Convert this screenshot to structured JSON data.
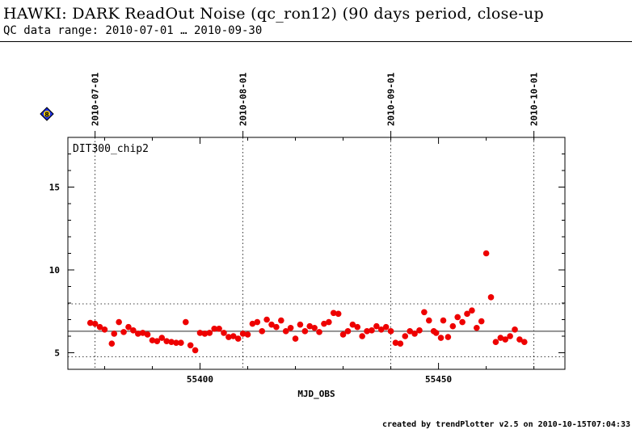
{
  "header": {
    "title": "HAWKI: DARK ReadOut Noise (qc_ron12) (90 days period, close-up",
    "subtitle": "QC data range: 2010-07-01 … 2010-09-30"
  },
  "footer": {
    "credit": "created by trendPlotter v2.5 on 2010-10-15T07:04:33"
  },
  "badge": {
    "label": "8",
    "color": "#1a2ee6"
  },
  "chart_data": {
    "type": "scatter",
    "panel_label": "DIT300_chip2",
    "xlabel": "MJD_OBS",
    "ylabel": "",
    "xlim": [
      55372.3,
      55476.5
    ],
    "ylim": [
      4.0,
      18.0
    ],
    "x_ticks": [
      55400,
      55450
    ],
    "x_tick_labels": [
      "55400",
      "55450"
    ],
    "y_ticks": [
      5,
      10,
      15
    ],
    "y_tick_labels": [
      "5",
      "10",
      "15"
    ],
    "date_markers": [
      {
        "x": 55378,
        "label": "2010-07-01"
      },
      {
        "x": 55409,
        "label": "2010-08-01"
      },
      {
        "x": 55440,
        "label": "2010-09-01"
      },
      {
        "x": 55470,
        "label": "2010-10-01"
      }
    ],
    "mean_line": 6.3,
    "threshold_lines": [
      4.75,
      7.95
    ],
    "point_color": "#ee0000",
    "points": [
      {
        "x": 55377,
        "y": 6.8
      },
      {
        "x": 55378,
        "y": 6.75
      },
      {
        "x": 55379,
        "y": 6.55
      },
      {
        "x": 55380,
        "y": 6.4
      },
      {
        "x": 55381.5,
        "y": 5.55
      },
      {
        "x": 55382,
        "y": 6.15
      },
      {
        "x": 55383,
        "y": 6.85
      },
      {
        "x": 55384,
        "y": 6.25
      },
      {
        "x": 55385,
        "y": 6.55
      },
      {
        "x": 55386,
        "y": 6.35
      },
      {
        "x": 55387,
        "y": 6.15
      },
      {
        "x": 55388,
        "y": 6.2
      },
      {
        "x": 55389,
        "y": 6.1
      },
      {
        "x": 55390,
        "y": 5.75
      },
      {
        "x": 55391,
        "y": 5.7
      },
      {
        "x": 55392,
        "y": 5.9
      },
      {
        "x": 55393,
        "y": 5.7
      },
      {
        "x": 55394,
        "y": 5.65
      },
      {
        "x": 55395,
        "y": 5.6
      },
      {
        "x": 55396,
        "y": 5.6
      },
      {
        "x": 55397,
        "y": 6.85
      },
      {
        "x": 55398,
        "y": 5.45
      },
      {
        "x": 55399,
        "y": 5.15
      },
      {
        "x": 55400,
        "y": 6.2
      },
      {
        "x": 55401,
        "y": 6.15
      },
      {
        "x": 55402,
        "y": 6.2
      },
      {
        "x": 55403,
        "y": 6.45
      },
      {
        "x": 55404,
        "y": 6.45
      },
      {
        "x": 55405,
        "y": 6.2
      },
      {
        "x": 55406,
        "y": 5.95
      },
      {
        "x": 55407,
        "y": 6.0
      },
      {
        "x": 55408,
        "y": 5.85
      },
      {
        "x": 55409,
        "y": 6.15
      },
      {
        "x": 55410,
        "y": 6.1
      },
      {
        "x": 55411,
        "y": 6.75
      },
      {
        "x": 55412,
        "y": 6.85
      },
      {
        "x": 55413,
        "y": 6.3
      },
      {
        "x": 55414,
        "y": 7.0
      },
      {
        "x": 55415,
        "y": 6.7
      },
      {
        "x": 55416,
        "y": 6.55
      },
      {
        "x": 55417,
        "y": 6.95
      },
      {
        "x": 55418,
        "y": 6.3
      },
      {
        "x": 55419,
        "y": 6.5
      },
      {
        "x": 55420,
        "y": 5.85
      },
      {
        "x": 55421,
        "y": 6.7
      },
      {
        "x": 55422,
        "y": 6.3
      },
      {
        "x": 55423,
        "y": 6.6
      },
      {
        "x": 55424,
        "y": 6.5
      },
      {
        "x": 55425,
        "y": 6.25
      },
      {
        "x": 55426,
        "y": 6.75
      },
      {
        "x": 55427,
        "y": 6.85
      },
      {
        "x": 55428,
        "y": 7.4
      },
      {
        "x": 55429,
        "y": 7.35
      },
      {
        "x": 55430,
        "y": 6.1
      },
      {
        "x": 55431,
        "y": 6.3
      },
      {
        "x": 55432,
        "y": 6.7
      },
      {
        "x": 55433,
        "y": 6.55
      },
      {
        "x": 55434,
        "y": 6.0
      },
      {
        "x": 55435,
        "y": 6.3
      },
      {
        "x": 55436,
        "y": 6.35
      },
      {
        "x": 55437,
        "y": 6.6
      },
      {
        "x": 55438,
        "y": 6.4
      },
      {
        "x": 55439,
        "y": 6.55
      },
      {
        "x": 55440,
        "y": 6.3
      },
      {
        "x": 55441,
        "y": 5.6
      },
      {
        "x": 55442,
        "y": 5.55
      },
      {
        "x": 55443,
        "y": 6.0
      },
      {
        "x": 55444,
        "y": 6.3
      },
      {
        "x": 55445,
        "y": 6.15
      },
      {
        "x": 55446,
        "y": 6.35
      },
      {
        "x": 55447,
        "y": 7.45
      },
      {
        "x": 55448,
        "y": 6.95
      },
      {
        "x": 55449,
        "y": 6.3
      },
      {
        "x": 55449.5,
        "y": 6.2
      },
      {
        "x": 55450.5,
        "y": 5.9
      },
      {
        "x": 55451,
        "y": 6.95
      },
      {
        "x": 55452,
        "y": 5.95
      },
      {
        "x": 55453,
        "y": 6.6
      },
      {
        "x": 55454,
        "y": 7.15
      },
      {
        "x": 55455,
        "y": 6.85
      },
      {
        "x": 55456,
        "y": 7.35
      },
      {
        "x": 55457,
        "y": 7.55
      },
      {
        "x": 55458,
        "y": 6.5
      },
      {
        "x": 55459,
        "y": 6.9
      },
      {
        "x": 55460,
        "y": 11.0
      },
      {
        "x": 55461,
        "y": 8.35
      },
      {
        "x": 55462,
        "y": 5.65
      },
      {
        "x": 55463,
        "y": 5.9
      },
      {
        "x": 55464,
        "y": 5.8
      },
      {
        "x": 55465,
        "y": 6.0
      },
      {
        "x": 55466,
        "y": 6.4
      },
      {
        "x": 55467,
        "y": 5.8
      },
      {
        "x": 55468,
        "y": 5.65
      }
    ]
  }
}
